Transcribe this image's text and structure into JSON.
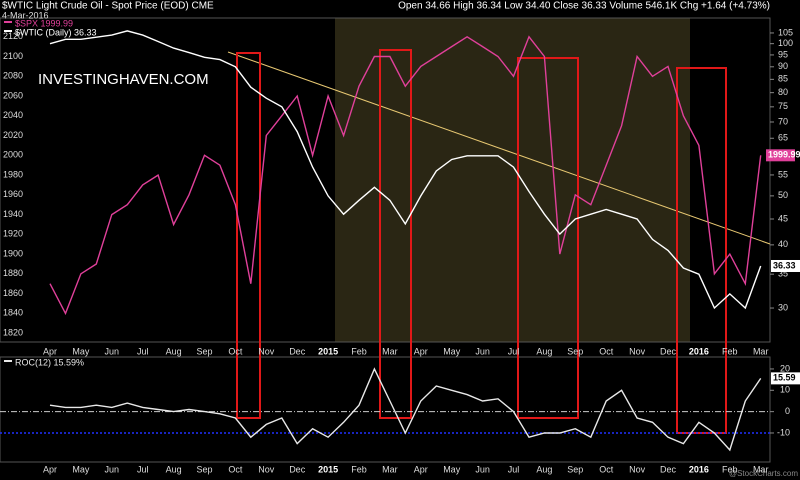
{
  "header": {
    "title": "$WTIC Light Crude Oil - Spot Price (EOD) CME",
    "date": "4-Mar-2016",
    "quote": "Open 34.66 High 36.34 Low 34.40 Close 36.33 Volume 546.1K Chg +1.64 (+4.73%)",
    "credit": "@StockCharts.com",
    "watermark": "INVESTINGHAVEN.COM"
  },
  "chart_data": [
    {
      "type": "line",
      "categories": [
        "Apr",
        null,
        "May",
        null,
        "Jun",
        null,
        "Jul",
        null,
        "Aug",
        null,
        "Sep",
        null,
        "Oct",
        null,
        "Nov",
        null,
        "Dec",
        null,
        "2015",
        null,
        "Feb",
        null,
        "Mar",
        null,
        "Apr",
        null,
        "May",
        null,
        "Jun",
        null,
        "Jul",
        null,
        "Aug",
        null,
        "Sep",
        null,
        "Oct",
        null,
        "Nov",
        null,
        "Dec",
        null,
        "2016",
        null,
        "Feb",
        null,
        "Mar"
      ],
      "series": [
        {
          "name": "$SPX 1999.99",
          "color": "#e0409a",
          "axis": "y",
          "values": [
            1870,
            1840,
            1880,
            1890,
            1940,
            1950,
            1970,
            1980,
            1930,
            1960,
            2000,
            1990,
            1950,
            1870,
            2020,
            2040,
            2060,
            2000,
            2060,
            2020,
            2070,
            2100,
            2100,
            2070,
            2090,
            2100,
            2110,
            2120,
            2110,
            2100,
            2080,
            2120,
            2100,
            1900,
            1960,
            1950,
            1990,
            2030,
            2100,
            2080,
            2090,
            2040,
            2010,
            1880,
            1900,
            1870,
            1999.99
          ]
        },
        {
          "name": "$WTIC (Daily) 36.33",
          "color": "#ffffff",
          "axis": "y2",
          "values": [
            100,
            102,
            102,
            103,
            104,
            106,
            104,
            101,
            98,
            96,
            94,
            93,
            90,
            82,
            78,
            75,
            67,
            57,
            50,
            46,
            49,
            52,
            49,
            44,
            50,
            56,
            59,
            60,
            60,
            60,
            57,
            51,
            46,
            42,
            45,
            46,
            47,
            46,
            45,
            41,
            39,
            36,
            35,
            30,
            32,
            30,
            36.33
          ]
        }
      ],
      "ylim": [
        1811,
        2139
      ],
      "yticks": [
        1820,
        1840,
        1860,
        1880,
        1900,
        1920,
        1940,
        1960,
        1980,
        2000,
        2020,
        2040,
        2060,
        2080,
        2100,
        2120
      ],
      "y2lim": [
        25.7,
        112.4
      ],
      "y2ticks": [
        30,
        35,
        40,
        45,
        50,
        55,
        60,
        65,
        70,
        75,
        80,
        85,
        90,
        95,
        100,
        105
      ],
      "y2log": true
    },
    {
      "type": "line",
      "series": [
        {
          "name": "ROC(12) 15.59%",
          "color": "#e8e8e8",
          "values": [
            3,
            2,
            2,
            3,
            2,
            4,
            2,
            1,
            0,
            1,
            0,
            -1,
            -3,
            -12,
            -6,
            -3,
            -15,
            -8,
            -12,
            -5,
            3,
            20,
            5,
            -10,
            5,
            12,
            10,
            8,
            5,
            6,
            0,
            -12,
            -10,
            -10,
            -8,
            -12,
            5,
            10,
            -3,
            -5,
            -12,
            -15,
            -5,
            -10,
            -18,
            5,
            15.59
          ]
        }
      ],
      "ylim": [
        -23.6,
        25.6
      ],
      "yticks": [
        -10,
        0,
        10,
        20
      ]
    }
  ]
}
